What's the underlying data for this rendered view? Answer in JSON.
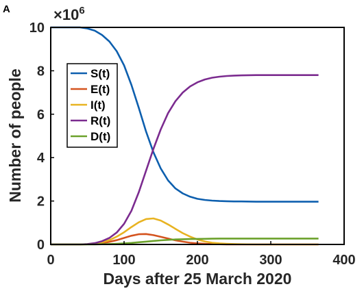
{
  "panel_label": "A",
  "chart_data": {
    "type": "line",
    "xlabel": "Days after 25 March 2020",
    "ylabel": "Number of people",
    "y_multiplier": {
      "base": "×10",
      "exponent": "6"
    },
    "xlim": [
      0,
      400
    ],
    "ylim": [
      0,
      10
    ],
    "xticks": [
      0,
      100,
      200,
      300,
      400
    ],
    "yticks": [
      0,
      2,
      4,
      6,
      8,
      10
    ],
    "grid": false,
    "legend_position": "upper-left",
    "x": [
      0,
      20,
      40,
      50,
      60,
      70,
      80,
      90,
      100,
      110,
      120,
      130,
      140,
      150,
      160,
      170,
      180,
      190,
      200,
      210,
      220,
      230,
      240,
      250,
      260,
      280,
      300,
      330,
      365
    ],
    "series": [
      {
        "name": "S(t)",
        "color": "#0d5fae",
        "values": [
          10.0,
          10.0,
          10.0,
          9.95,
          9.85,
          9.65,
          9.35,
          8.9,
          8.25,
          7.35,
          6.3,
          5.2,
          4.25,
          3.5,
          2.95,
          2.58,
          2.35,
          2.2,
          2.1,
          2.05,
          2.02,
          2.0,
          1.99,
          1.98,
          1.98,
          1.97,
          1.97,
          1.97,
          1.97
        ]
      },
      {
        "name": "E(t)",
        "color": "#d4531e",
        "values": [
          0.0,
          0.0,
          0.0,
          0.01,
          0.03,
          0.06,
          0.12,
          0.2,
          0.3,
          0.4,
          0.47,
          0.48,
          0.43,
          0.35,
          0.27,
          0.19,
          0.13,
          0.08,
          0.05,
          0.03,
          0.02,
          0.01,
          0.0,
          0.0,
          0.0,
          0.0,
          0.0,
          0.0,
          0.0
        ]
      },
      {
        "name": "I(t)",
        "color": "#e8b321",
        "values": [
          0.0,
          0.0,
          0.0,
          0.01,
          0.04,
          0.1,
          0.2,
          0.36,
          0.56,
          0.8,
          1.02,
          1.17,
          1.2,
          1.1,
          0.92,
          0.72,
          0.52,
          0.36,
          0.23,
          0.14,
          0.08,
          0.05,
          0.03,
          0.02,
          0.01,
          0.0,
          0.0,
          0.0,
          0.0
        ]
      },
      {
        "name": "R(t)",
        "color": "#7b2b8f",
        "values": [
          0.0,
          0.0,
          0.0,
          0.02,
          0.06,
          0.15,
          0.3,
          0.55,
          0.95,
          1.55,
          2.4,
          3.4,
          4.4,
          5.3,
          6.05,
          6.6,
          7.0,
          7.28,
          7.47,
          7.6,
          7.68,
          7.73,
          7.76,
          7.78,
          7.79,
          7.8,
          7.8,
          7.8,
          7.8
        ]
      },
      {
        "name": "D(t)",
        "color": "#6ba12a",
        "values": [
          0.0,
          0.0,
          0.0,
          0.0,
          0.0,
          0.01,
          0.02,
          0.03,
          0.05,
          0.07,
          0.1,
          0.13,
          0.16,
          0.19,
          0.21,
          0.23,
          0.24,
          0.25,
          0.255,
          0.26,
          0.265,
          0.27,
          0.27,
          0.27,
          0.27,
          0.27,
          0.27,
          0.27,
          0.27
        ]
      }
    ]
  }
}
